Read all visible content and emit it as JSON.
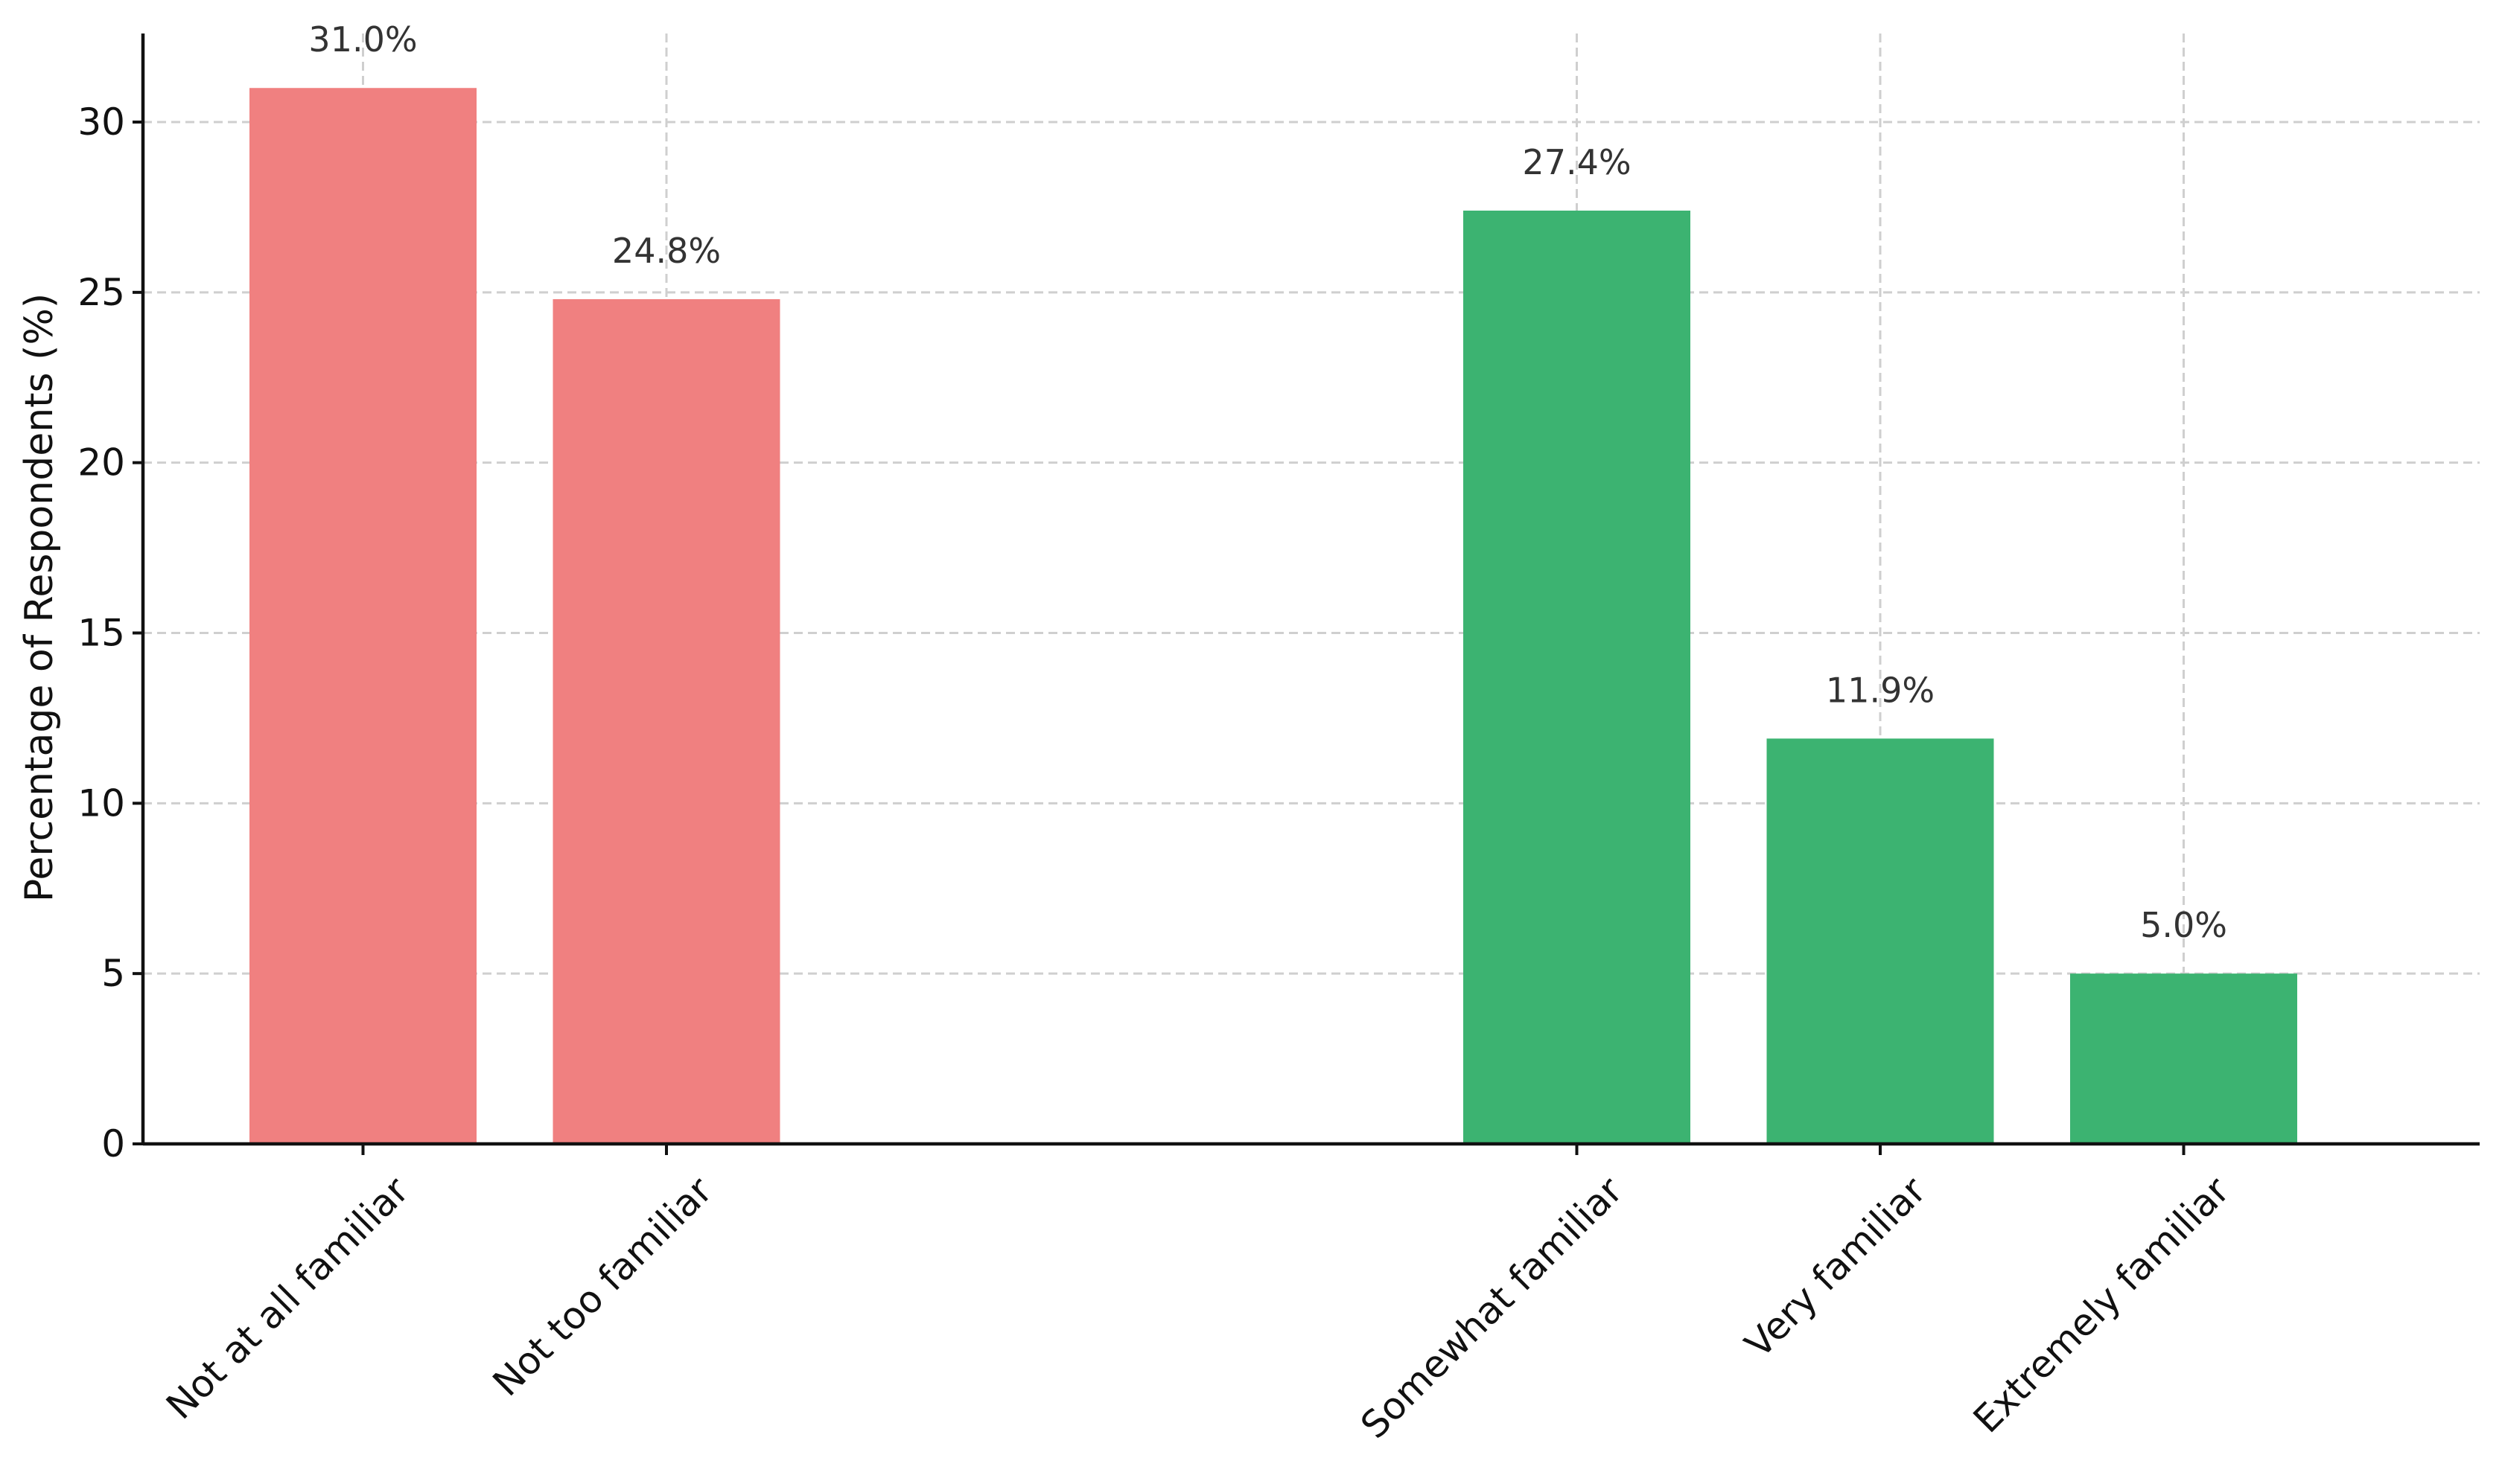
{
  "chart_data": {
    "type": "bar",
    "title": "",
    "xlabel": "",
    "ylabel": "Percentage of Respondents (%)",
    "ylim": [
      0,
      32.6
    ],
    "yticks": [
      0,
      5,
      10,
      15,
      20,
      25,
      30
    ],
    "grid": true,
    "legend": "none",
    "categories": [
      "Not at all familiar",
      "Not too familiar",
      "",
      "",
      "Somewhat familiar",
      "Very familiar",
      "Extremely familiar"
    ],
    "values": [
      31.0,
      24.8,
      null,
      null,
      27.4,
      11.9,
      5.0
    ],
    "data_labels": [
      "31.0%",
      "24.8%",
      "",
      "",
      "27.4%",
      "11.9%",
      "5.0%"
    ],
    "bar_colors": [
      "#f08080",
      "#f08080",
      "",
      "",
      "#3cb371",
      "#3cb371",
      "#3cb371"
    ],
    "x_tick_rotation_deg": 45
  }
}
